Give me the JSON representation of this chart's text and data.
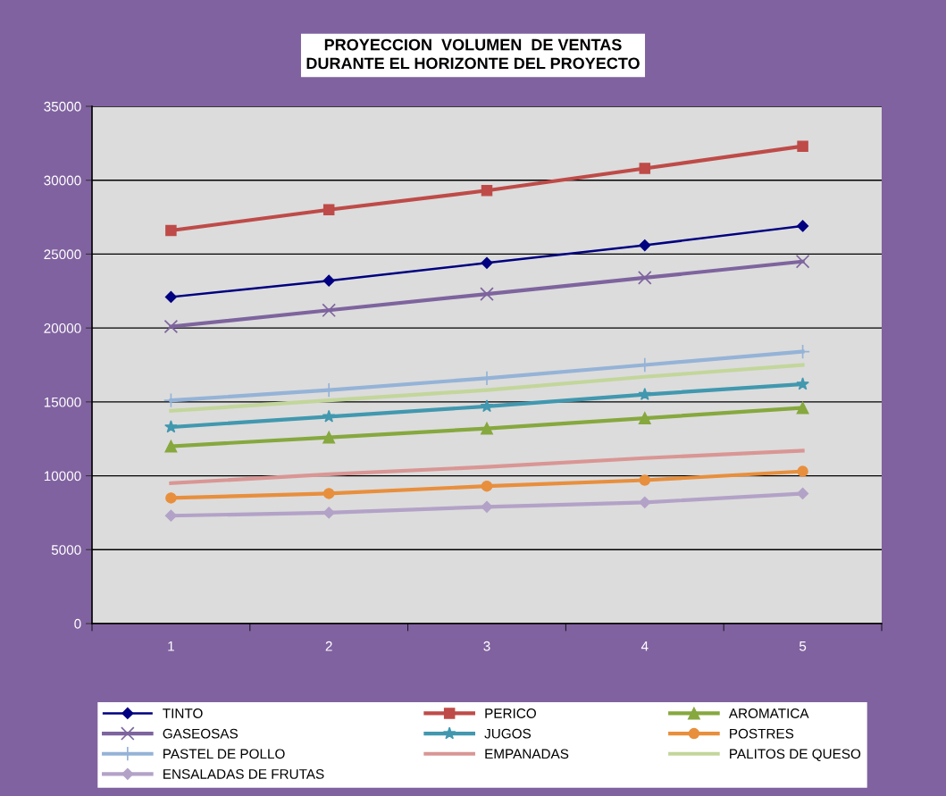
{
  "chart_data": {
    "type": "line",
    "title": "PROYECCION  VOLUMEN  DE VENTAS\nDURANTE EL HORIZONTE DEL PROYECTO",
    "categories": [
      "1",
      "2",
      "3",
      "4",
      "5"
    ],
    "series": [
      {
        "name": "TINTO",
        "color": "#000080",
        "marker": "diamond",
        "values": [
          22100,
          23200,
          24400,
          25600,
          26900
        ]
      },
      {
        "name": "PERICO",
        "color": "#be4b48",
        "marker": "square",
        "values": [
          26600,
          28000,
          29300,
          30800,
          32300
        ]
      },
      {
        "name": "AROMATICA",
        "color": "#86a83e",
        "marker": "triangle",
        "values": [
          12000,
          12600,
          13200,
          13900,
          14600
        ]
      },
      {
        "name": "GASEOSAS",
        "color": "#7e649e",
        "marker": "cross",
        "values": [
          20100,
          21200,
          22300,
          23400,
          24500
        ]
      },
      {
        "name": "JUGOS",
        "color": "#4198af",
        "marker": "star",
        "values": [
          13300,
          14000,
          14700,
          15500,
          16200
        ]
      },
      {
        "name": "POSTRES",
        "color": "#e88f3d",
        "marker": "circle",
        "values": [
          8500,
          8800,
          9300,
          9700,
          10300
        ]
      },
      {
        "name": "PASTEL DE POLLO",
        "color": "#95b3d7",
        "marker": "plus",
        "values": [
          15100,
          15800,
          16600,
          17500,
          18400
        ]
      },
      {
        "name": "EMPANADAS",
        "color": "#d99694",
        "marker": "none",
        "values": [
          9500,
          10100,
          10600,
          11200,
          11700
        ]
      },
      {
        "name": "PALITOS DE QUESO",
        "color": "#c3d69b",
        "marker": "none",
        "values": [
          14400,
          15100,
          15800,
          16700,
          17500
        ]
      },
      {
        "name": "ENSALADAS DE FRUTAS",
        "color": "#b3a2c7",
        "marker": "diamond",
        "values": [
          7300,
          7500,
          7900,
          8200,
          8800
        ]
      }
    ],
    "ylim": [
      0,
      35000
    ],
    "yticks": [
      0,
      5000,
      10000,
      15000,
      20000,
      25000,
      30000,
      35000
    ],
    "grid": "y",
    "legend": "bottom",
    "line_style": "solid"
  }
}
